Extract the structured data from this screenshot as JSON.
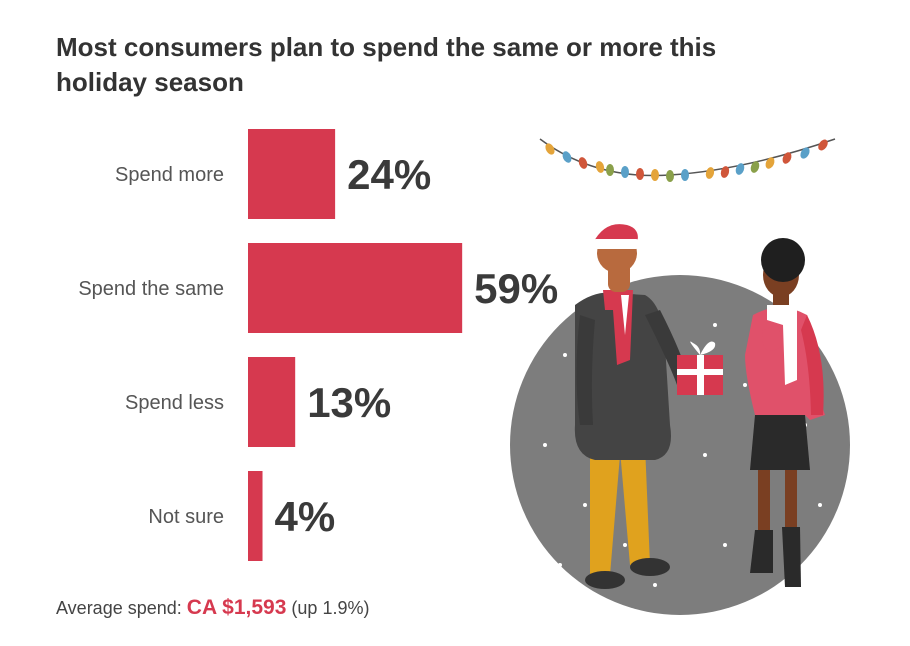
{
  "title": "Most consumers plan to spend the same or more this holiday season",
  "footer": {
    "prefix": "Average spend:",
    "amount": "CA $1,593",
    "note": "(up 1.9%)"
  },
  "colors": {
    "bar": "#d6394f",
    "text": "#333333",
    "circle": "#7d7d7d"
  },
  "chart_data": {
    "type": "bar",
    "orientation": "horizontal",
    "title": "Most consumers plan to spend the same or more this holiday season",
    "categories": [
      "Spend more",
      "Spend the same",
      "Spend less",
      "Not sure"
    ],
    "values": [
      24,
      59,
      13,
      4
    ],
    "value_labels": [
      "24%",
      "59%",
      "13%",
      "4%"
    ],
    "xlabel": "",
    "ylabel": "",
    "xlim": [
      0,
      100
    ],
    "grid": false,
    "legend": "none"
  }
}
